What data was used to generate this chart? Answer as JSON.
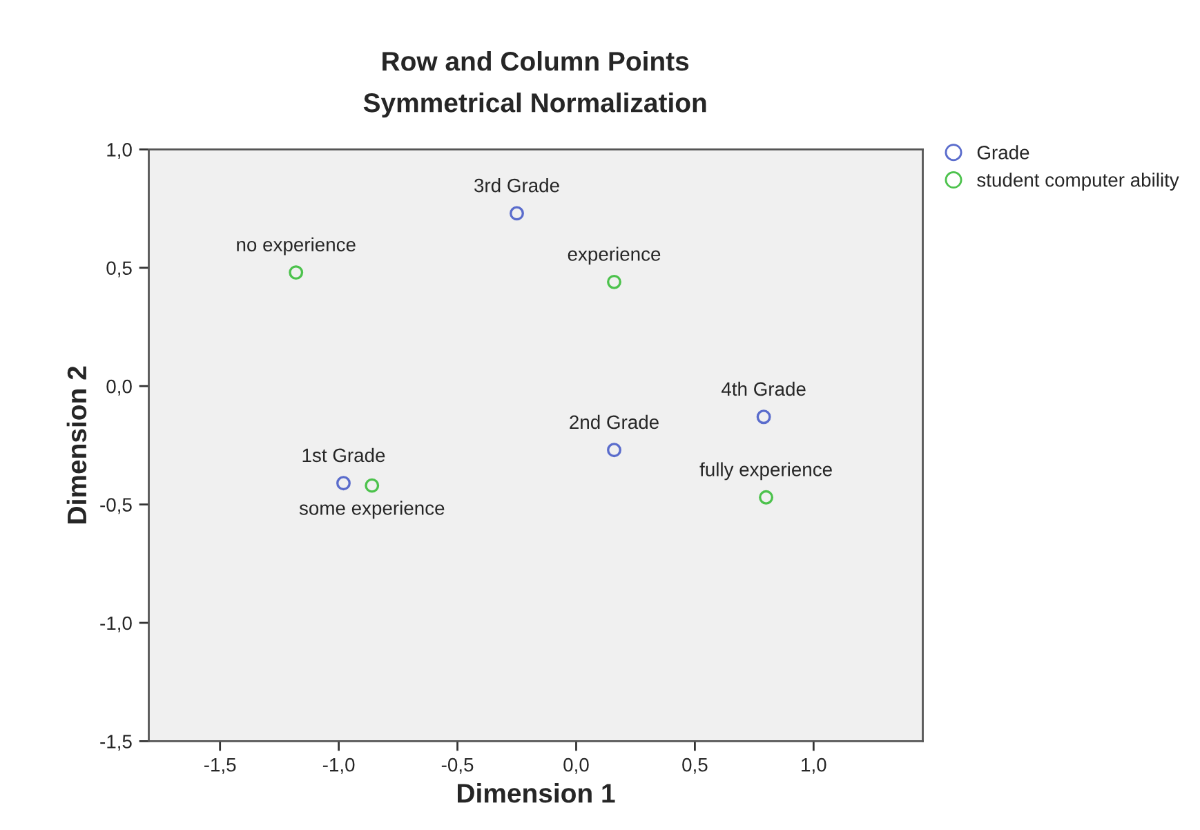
{
  "chart_data": {
    "type": "scatter",
    "title": "Row and Column Points",
    "subtitle": "Symmetrical Normalization",
    "xlabel": "Dimension 1",
    "ylabel": "Dimension 2",
    "series": [
      {
        "name": "Grade",
        "color": "#5a6ccc",
        "x": [
          -0.98,
          0.16,
          -0.25,
          0.79
        ],
        "values": [
          -0.41,
          -0.27,
          0.73,
          -0.13
        ]
      },
      {
        "name": "student computer ability",
        "color": "#4cc24c",
        "x": [
          -1.18,
          -0.86,
          0.16,
          0.8
        ],
        "values": [
          0.48,
          -0.42,
          0.44,
          -0.47
        ]
      }
    ],
    "annotations": [
      {
        "text": "1st Grade",
        "x": -0.98,
        "y": -0.41
      },
      {
        "text": "2nd Grade",
        "x": 0.16,
        "y": -0.27
      },
      {
        "text": "3rd Grade",
        "x": -0.25,
        "y": 0.73
      },
      {
        "text": "4th Grade",
        "x": 0.79,
        "y": -0.13
      },
      {
        "text": "no experience",
        "x": -1.18,
        "y": 0.48
      },
      {
        "text": "some experience",
        "x": -0.86,
        "y": -0.42
      },
      {
        "text": "experience",
        "x": 0.16,
        "y": 0.44
      },
      {
        "text": "fully experience",
        "x": 0.8,
        "y": -0.47
      }
    ],
    "xlim": [
      -1.8,
      1.46
    ],
    "ylim": [
      -1.5,
      1.0
    ],
    "xticks": [
      {
        "value": -1.5,
        "label": "-1,5"
      },
      {
        "value": -1.0,
        "label": "-1,0"
      },
      {
        "value": -0.5,
        "label": "-0,5"
      },
      {
        "value": 0.0,
        "label": "0,0"
      },
      {
        "value": 0.5,
        "label": "0,5"
      },
      {
        "value": 1.0,
        "label": "1,0"
      }
    ],
    "yticks": [
      {
        "value": -1.5,
        "label": "-1,5"
      },
      {
        "value": -1.0,
        "label": "-1,0"
      },
      {
        "value": -0.5,
        "label": "-0,5"
      },
      {
        "value": 0.0,
        "label": "0,0"
      },
      {
        "value": 0.5,
        "label": "0,5"
      },
      {
        "value": 1.0,
        "label": "1,0"
      }
    ],
    "grid": false,
    "legend": "top right",
    "marker": "circle"
  }
}
